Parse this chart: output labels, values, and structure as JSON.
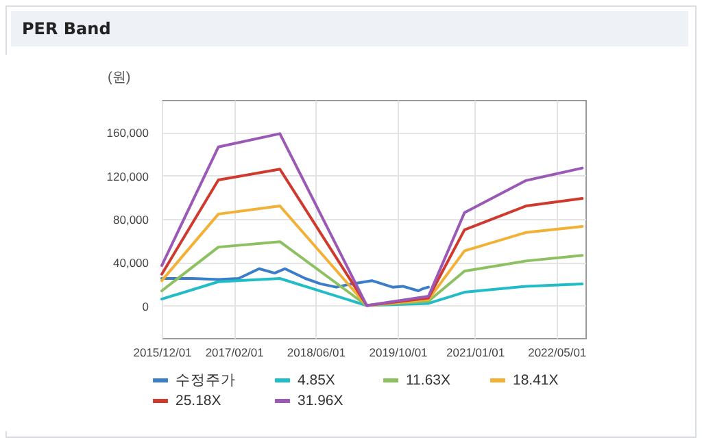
{
  "chart_data": {
    "type": "line",
    "title": "PER Band",
    "ylabel": "(원)",
    "xlim": [
      "2015-12-01",
      "2022-10-20"
    ],
    "xticks": [
      {
        "value": "2015-12-01",
        "label": "2015/12/01"
      },
      {
        "value": "2017-02-01",
        "label": "2017/02/01"
      },
      {
        "value": "2018-06-01",
        "label": "2018/06/01"
      },
      {
        "value": "2019-10-01",
        "label": "2019/10/01"
      },
      {
        "value": "2021-01-01",
        "label": "2021/01/01"
      },
      {
        "value": "2022-05-01",
        "label": "2022/05/01"
      }
    ],
    "ylim": [
      -30000,
      190000
    ],
    "yticks": [
      {
        "value": 0,
        "label": "0"
      },
      {
        "value": 40000,
        "label": "40,000"
      },
      {
        "value": 80000,
        "label": "80,000"
      },
      {
        "value": 120000,
        "label": "120,000"
      },
      {
        "value": 160000,
        "label": "160,000"
      }
    ],
    "grid": true,
    "legend": "bottom",
    "line_style": "solid",
    "marker": "none",
    "series": [
      {
        "name": "수정주가",
        "color": "#3a7dc9",
        "x": [
          "2015-12-01",
          "2016-06-01",
          "2016-11-01",
          "2017-03-01",
          "2017-07-01",
          "2017-10-01",
          "2017-12-01",
          "2018-04-01",
          "2018-07-01",
          "2018-10-01",
          "2019-01-01",
          "2019-05-01",
          "2019-09-01",
          "2019-11-01",
          "2020-02-01",
          "2020-03-01",
          "2020-04-01"
        ],
        "values": [
          25000,
          25000,
          24000,
          25000,
          34000,
          30000,
          34000,
          25000,
          20000,
          17000,
          20000,
          23000,
          17000,
          17800,
          13600,
          15700,
          17000
        ]
      },
      {
        "name": "4.85X",
        "color": "#22bcc8",
        "x": [
          "2015-12-01",
          "2016-11-01",
          "2017-11-01",
          "2019-04-01",
          "2020-04-01",
          "2020-11-01",
          "2021-11-01",
          "2022-10-01"
        ],
        "values": [
          6000,
          22000,
          25000,
          0,
          2000,
          12300,
          17800,
          20000
        ]
      },
      {
        "name": "11.63X",
        "color": "#8dc060",
        "x": [
          "2015-12-01",
          "2016-11-01",
          "2017-11-01",
          "2019-04-01",
          "2020-04-01",
          "2020-11-01",
          "2021-11-01",
          "2022-10-01"
        ],
        "values": [
          13600,
          54000,
          59000,
          0,
          4000,
          31800,
          41200,
          46300
        ]
      },
      {
        "name": "18.41X",
        "color": "#f2b035",
        "x": [
          "2015-12-01",
          "2016-11-01",
          "2017-11-01",
          "2019-04-01",
          "2020-04-01",
          "2020-11-01",
          "2021-11-01",
          "2022-10-01"
        ],
        "values": [
          23000,
          84500,
          92000,
          0,
          5500,
          50500,
          67500,
          73000
        ]
      },
      {
        "name": "25.18X",
        "color": "#d03a2e",
        "x": [
          "2015-12-01",
          "2016-11-01",
          "2017-11-01",
          "2019-04-01",
          "2020-04-01",
          "2020-11-01",
          "2021-11-01",
          "2022-10-01"
        ],
        "values": [
          29000,
          116000,
          126000,
          0,
          7000,
          70000,
          92000,
          99000
        ]
      },
      {
        "name": "31.96X",
        "color": "#9b59b6",
        "x": [
          "2015-12-01",
          "2016-11-01",
          "2017-11-01",
          "2019-04-01",
          "2020-04-01",
          "2020-11-01",
          "2021-11-01",
          "2022-10-01"
        ],
        "values": [
          37000,
          146500,
          158800,
          0,
          8500,
          85800,
          115500,
          127000
        ]
      }
    ]
  }
}
